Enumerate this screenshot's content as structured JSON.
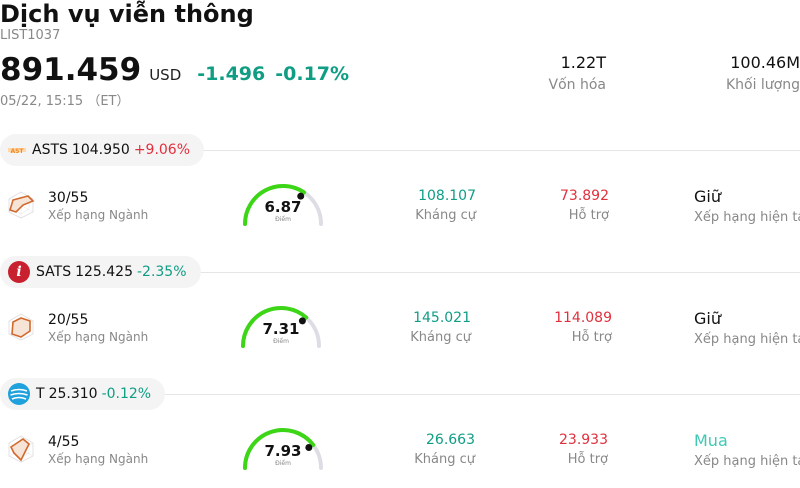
{
  "header": {
    "title": "Dịch vụ viễn thông",
    "code": "LIST1037",
    "price": "891.459",
    "currency": "USD",
    "change": "-1.496",
    "change_pct": "-0.17%",
    "time": "05/22, 15:15 （ET）",
    "market_cap_value": "1.22T",
    "market_cap_label": "Vốn hóa",
    "volume_value": "100.46M",
    "volume_label": "Khối lượng"
  },
  "colors": {
    "up": "#e0303d",
    "down": "#0f9d84",
    "gauge": "#3dd617",
    "buy": "#3fc9b5"
  },
  "stocks": [
    {
      "logo": "ast-logo",
      "logo_text": "AST",
      "symbol": "ASTS",
      "price": "104.950",
      "change_pct": "+9.06%",
      "direction": "up",
      "rank": "30/55",
      "rank_label": "Xếp hạng Ngành",
      "score": "6.87",
      "score_value": 6.87,
      "score_label": "Điểm",
      "resistance": "108.107",
      "resistance_label": "Kháng cự",
      "support": "73.892",
      "support_label": "Hỗ trợ",
      "rating": "Giữ",
      "rating_label": "Xếp hạng hiện tại"
    },
    {
      "logo": "echostar-logo",
      "logo_text": "i",
      "symbol": "SATS",
      "price": "125.425",
      "change_pct": "-2.35%",
      "direction": "down",
      "rank": "20/55",
      "rank_label": "Xếp hạng Ngành",
      "score": "7.31",
      "score_value": 7.31,
      "score_label": "Điểm",
      "resistance": "145.021",
      "resistance_label": "Kháng cự",
      "support": "114.089",
      "support_label": "Hỗ trợ",
      "rating": "Giữ",
      "rating_label": "Xếp hạng hiện tại"
    },
    {
      "logo": "att-logo",
      "logo_text": "",
      "symbol": "T",
      "price": "25.310",
      "change_pct": "-0.12%",
      "direction": "down",
      "rank": "4/55",
      "rank_label": "Xếp hạng Ngành",
      "score": "7.93",
      "score_value": 7.93,
      "score_label": "Điểm",
      "resistance": "26.663",
      "resistance_label": "Kháng cự",
      "support": "23.933",
      "support_label": "Hỗ trợ",
      "rating": "Mua",
      "rating_label": "Xếp hạng hiện tại"
    }
  ]
}
